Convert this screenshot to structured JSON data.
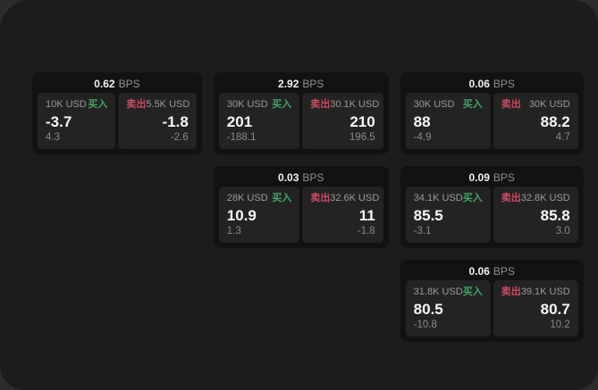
{
  "labels": {
    "bps_unit": "BPS",
    "buy": "买入",
    "sell": "卖出"
  },
  "colors": {
    "buy_accent": "#42a566",
    "sell_accent": "#c94a63",
    "panel_background": "#1c1c1c",
    "card_background": "#121212",
    "tile_background": "#232323"
  },
  "cards": [
    {
      "bps": "0.62",
      "buy": {
        "amount": "10K USD",
        "value": "-3.7",
        "delta": "4.3"
      },
      "sell": {
        "amount": "5.5K USD",
        "value": "-1.8",
        "delta": "-2.6"
      }
    },
    {
      "bps": "2.92",
      "buy": {
        "amount": "30K USD",
        "value": "201",
        "delta": "-188.1"
      },
      "sell": {
        "amount": "30.1K USD",
        "value": "210",
        "delta": "196.5"
      }
    },
    {
      "bps": "0.06",
      "buy": {
        "amount": "30K USD",
        "value": "88",
        "delta": "-4.9"
      },
      "sell": {
        "amount": "30K USD",
        "value": "88.2",
        "delta": "4.7"
      }
    },
    {
      "bps": "0.03",
      "buy": {
        "amount": "28K USD",
        "value": "10.9",
        "delta": "1.3"
      },
      "sell": {
        "amount": "32.6K USD",
        "value": "11",
        "delta": "-1.8"
      }
    },
    {
      "bps": "0.09",
      "buy": {
        "amount": "34.1K USD",
        "value": "85.5",
        "delta": "-3.1"
      },
      "sell": {
        "amount": "32.8K USD",
        "value": "85.8",
        "delta": "3.0"
      }
    },
    {
      "bps": "0.06",
      "buy": {
        "amount": "31.8K USD",
        "value": "80.5",
        "delta": "-10.8"
      },
      "sell": {
        "amount": "39.1K USD",
        "value": "80.7",
        "delta": "10.2"
      }
    }
  ]
}
